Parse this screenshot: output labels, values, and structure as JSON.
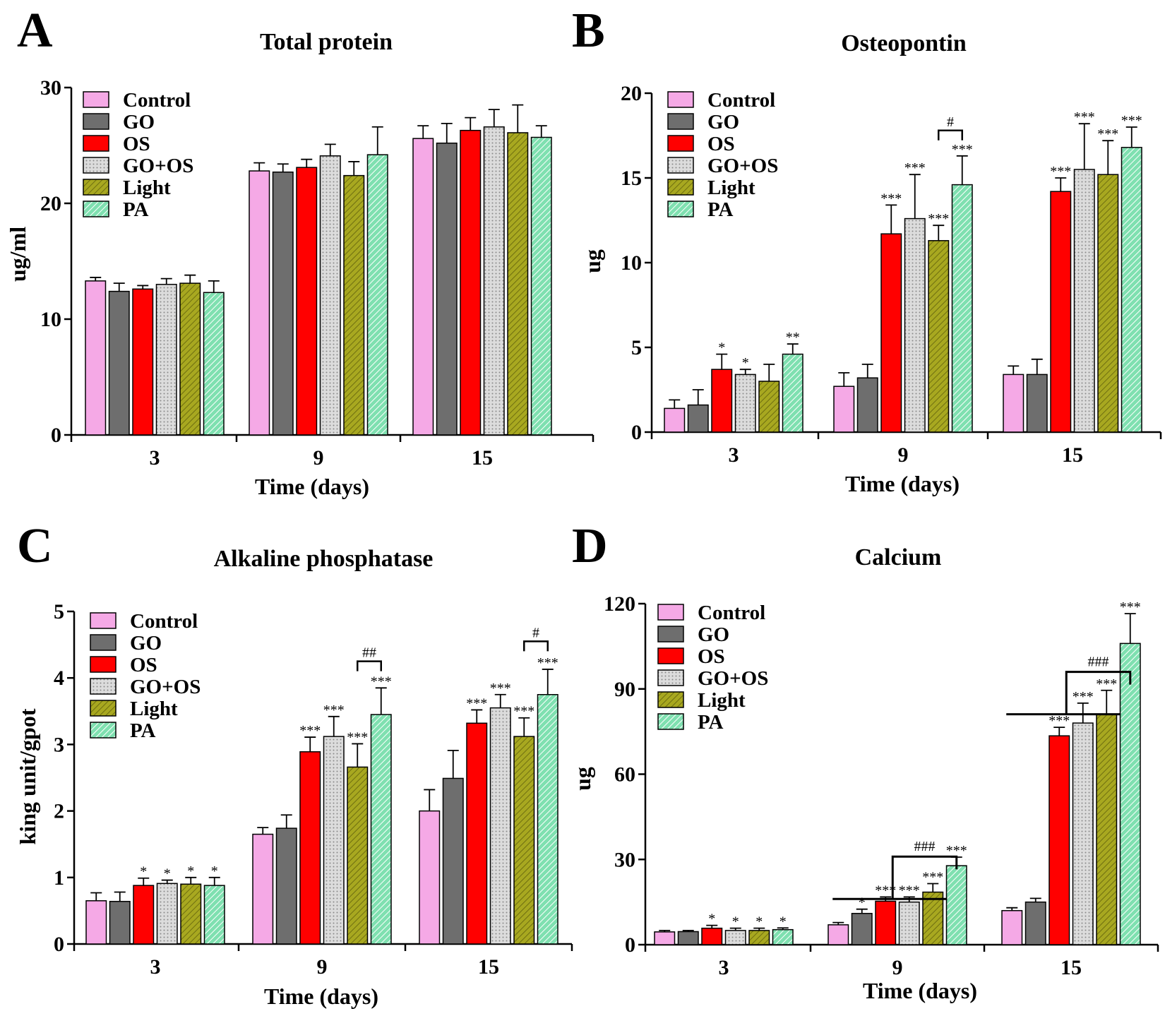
{
  "series": [
    {
      "name": "Control",
      "color": "#f5a9e6",
      "pattern": "solid"
    },
    {
      "name": "GO",
      "color": "#6e6e6e",
      "pattern": "solid"
    },
    {
      "name": "OS",
      "color": "#ff0000",
      "pattern": "solid"
    },
    {
      "name": "GO+OS",
      "color": "#d8d8d8",
      "pattern": "dots"
    },
    {
      "name": "Light",
      "color": "#a8a820",
      "pattern": "hatch"
    },
    {
      "name": "PA",
      "color": "#7fe0b0",
      "pattern": "hatch"
    }
  ],
  "chart_data": [
    {
      "letter": "A",
      "type": "bar",
      "title": "Total protein",
      "xlabel": "Time (days)",
      "ylabel": "ug/ml",
      "ylim": [
        0,
        30
      ],
      "yticks": [
        0,
        10,
        20,
        30
      ],
      "categories": [
        "3",
        "9",
        "15"
      ],
      "values": [
        [
          13.3,
          12.4,
          12.6,
          13.0,
          13.1,
          12.3
        ],
        [
          22.8,
          22.7,
          23.1,
          24.1,
          22.4,
          24.2
        ],
        [
          25.6,
          25.2,
          26.3,
          26.6,
          26.1,
          25.7
        ]
      ],
      "errors": [
        [
          0.3,
          0.7,
          0.3,
          0.5,
          0.7,
          1.0
        ],
        [
          0.7,
          0.7,
          0.7,
          1.0,
          1.2,
          2.4
        ],
        [
          1.1,
          1.7,
          1.1,
          1.5,
          2.4,
          1.0
        ]
      ],
      "annotations": [],
      "brackets": []
    },
    {
      "letter": "B",
      "type": "bar",
      "title": "Osteopontin",
      "xlabel": "Time (days)",
      "ylabel": "ug",
      "ylim": [
        0,
        20
      ],
      "yticks": [
        0,
        5,
        10,
        15,
        20
      ],
      "categories": [
        "3",
        "9",
        "15"
      ],
      "values": [
        [
          1.4,
          1.6,
          3.7,
          3.4,
          3.0,
          4.6
        ],
        [
          2.7,
          3.2,
          11.7,
          12.6,
          11.3,
          14.6
        ],
        [
          3.4,
          3.4,
          14.2,
          15.5,
          15.2,
          16.8
        ]
      ],
      "errors": [
        [
          0.5,
          0.9,
          0.9,
          0.3,
          1.0,
          0.6
        ],
        [
          0.8,
          0.8,
          1.7,
          2.6,
          0.9,
          1.7
        ],
        [
          0.5,
          0.9,
          0.8,
          2.7,
          2.0,
          1.2
        ]
      ],
      "annotations": [
        [
          "",
          "",
          "*",
          "*",
          "",
          "**"
        ],
        [
          "",
          "",
          "***",
          "***",
          "***",
          "***"
        ],
        [
          "",
          "",
          "***",
          "***",
          "***",
          "***"
        ]
      ],
      "brackets": [
        {
          "group": 1,
          "from": 4,
          "to": 5,
          "label": "#",
          "y": 17.8,
          "style": "simple"
        }
      ]
    },
    {
      "letter": "C",
      "type": "bar",
      "title": "Alkaline phosphatase",
      "xlabel": "Time (days)",
      "ylabel": "king unit/gpot",
      "ylim": [
        0,
        5
      ],
      "yticks": [
        0,
        1,
        2,
        3,
        4,
        5
      ],
      "categories": [
        "3",
        "9",
        "15"
      ],
      "values": [
        [
          0.65,
          0.64,
          0.88,
          0.91,
          0.9,
          0.88
        ],
        [
          1.65,
          1.74,
          2.89,
          3.12,
          2.66,
          3.45
        ],
        [
          2.0,
          2.49,
          3.32,
          3.55,
          3.12,
          3.75
        ]
      ],
      "errors": [
        [
          0.12,
          0.14,
          0.11,
          0.05,
          0.1,
          0.12
        ],
        [
          0.1,
          0.2,
          0.22,
          0.3,
          0.35,
          0.4
        ],
        [
          0.32,
          0.42,
          0.2,
          0.2,
          0.28,
          0.38
        ]
      ],
      "annotations": [
        [
          "",
          "",
          "*",
          "*",
          "*",
          "*"
        ],
        [
          "",
          "",
          "***",
          "***",
          "***",
          "***"
        ],
        [
          "",
          "",
          "***",
          "***",
          "***",
          "***"
        ]
      ],
      "brackets": [
        {
          "group": 1,
          "from": 4,
          "to": 5,
          "label": "##",
          "y": 4.25,
          "style": "simple"
        },
        {
          "group": 2,
          "from": 4,
          "to": 5,
          "label": "#",
          "y": 4.55,
          "style": "simple"
        }
      ]
    },
    {
      "letter": "D",
      "type": "bar",
      "title": "Calcium",
      "xlabel": "Time (days)",
      "ylabel": "ug",
      "ylim": [
        0,
        120
      ],
      "yticks": [
        0,
        30,
        60,
        90,
        120
      ],
      "categories": [
        "3",
        "9",
        "15"
      ],
      "values": [
        [
          4.5,
          4.6,
          5.8,
          5.0,
          5.0,
          5.3
        ],
        [
          7.0,
          11.0,
          15.3,
          15.0,
          18.5,
          27.8
        ],
        [
          12.0,
          15.0,
          73.5,
          78.0,
          81.0,
          106.0
        ]
      ],
      "errors": [
        [
          0.5,
          0.4,
          1.0,
          0.8,
          0.8,
          0.6
        ],
        [
          0.8,
          1.5,
          1.5,
          1.8,
          3.0,
          3.0
        ],
        [
          1.0,
          1.3,
          3.0,
          7.0,
          8.5,
          10.5
        ]
      ],
      "annotations": [
        [
          "",
          "",
          "*",
          "*",
          "*",
          "*"
        ],
        [
          "",
          "*",
          "***",
          "***",
          "***",
          "***"
        ],
        [
          "",
          "",
          "***",
          "***",
          "***",
          "***"
        ]
      ],
      "brackets": [
        {
          "group": 1,
          "from": 0,
          "to": 5,
          "label": "###",
          "y": 31,
          "style": "wide"
        },
        {
          "group": 2,
          "from": 0,
          "to": 5,
          "label": "###",
          "y": 96,
          "style": "wide"
        }
      ]
    }
  ]
}
